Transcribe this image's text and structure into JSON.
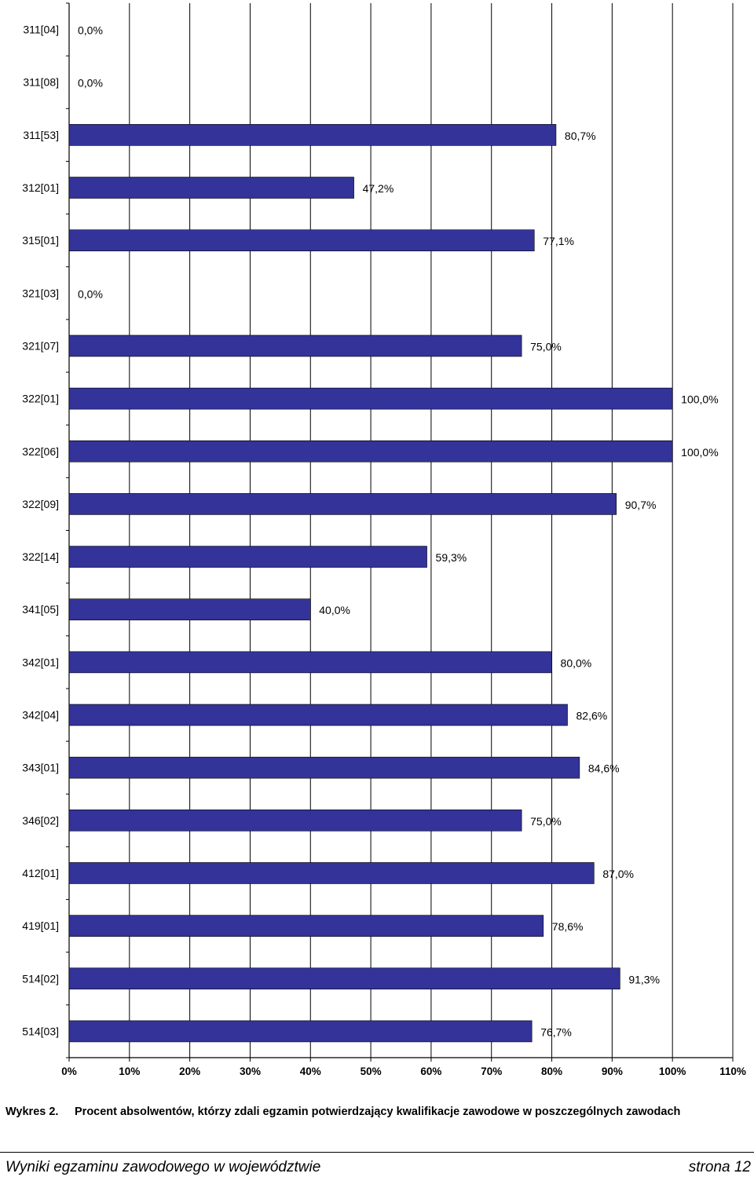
{
  "chart_data": {
    "type": "bar",
    "orientation": "horizontal",
    "categories": [
      "311[04]",
      "311[08]",
      "311[53]",
      "312[01]",
      "315[01]",
      "321[03]",
      "321[07]",
      "322[01]",
      "322[06]",
      "322[09]",
      "322[14]",
      "341[05]",
      "342[01]",
      "342[04]",
      "343[01]",
      "346[02]",
      "412[01]",
      "419[01]",
      "514[02]",
      "514[03]"
    ],
    "values": [
      0.0,
      0.0,
      80.7,
      47.2,
      77.1,
      0.0,
      75.0,
      100.0,
      100.0,
      90.7,
      59.3,
      40.0,
      80.0,
      82.6,
      84.6,
      75.0,
      87.0,
      78.6,
      91.3,
      76.7
    ],
    "value_labels": [
      "0,0%",
      "0,0%",
      "80,7%",
      "47,2%",
      "77,1%",
      "0,0%",
      "75,0%",
      "100,0%",
      "100,0%",
      "90,7%",
      "59,3%",
      "40,0%",
      "80,0%",
      "82,6%",
      "84,6%",
      "75,0%",
      "87,0%",
      "78,6%",
      "91,3%",
      "76,7%"
    ],
    "xlim": [
      0,
      110
    ],
    "xticks": [
      0,
      10,
      20,
      30,
      40,
      50,
      60,
      70,
      80,
      90,
      100,
      110
    ],
    "xtick_labels": [
      "0%",
      "10%",
      "20%",
      "30%",
      "40%",
      "50%",
      "60%",
      "70%",
      "80%",
      "90%",
      "100%",
      "110%"
    ],
    "grid": "vertical",
    "bar_color": "#333399",
    "title": "",
    "xlabel": "",
    "ylabel": ""
  },
  "caption": {
    "number": "Wykres 2.",
    "text": "Procent absolwentów, którzy zdali egzamin potwierdzający kwalifikacje zawodowe w poszczególnych zawodach"
  },
  "footer": {
    "left": "Wyniki egzaminu zawodowego w województwie",
    "right": "strona 12"
  }
}
